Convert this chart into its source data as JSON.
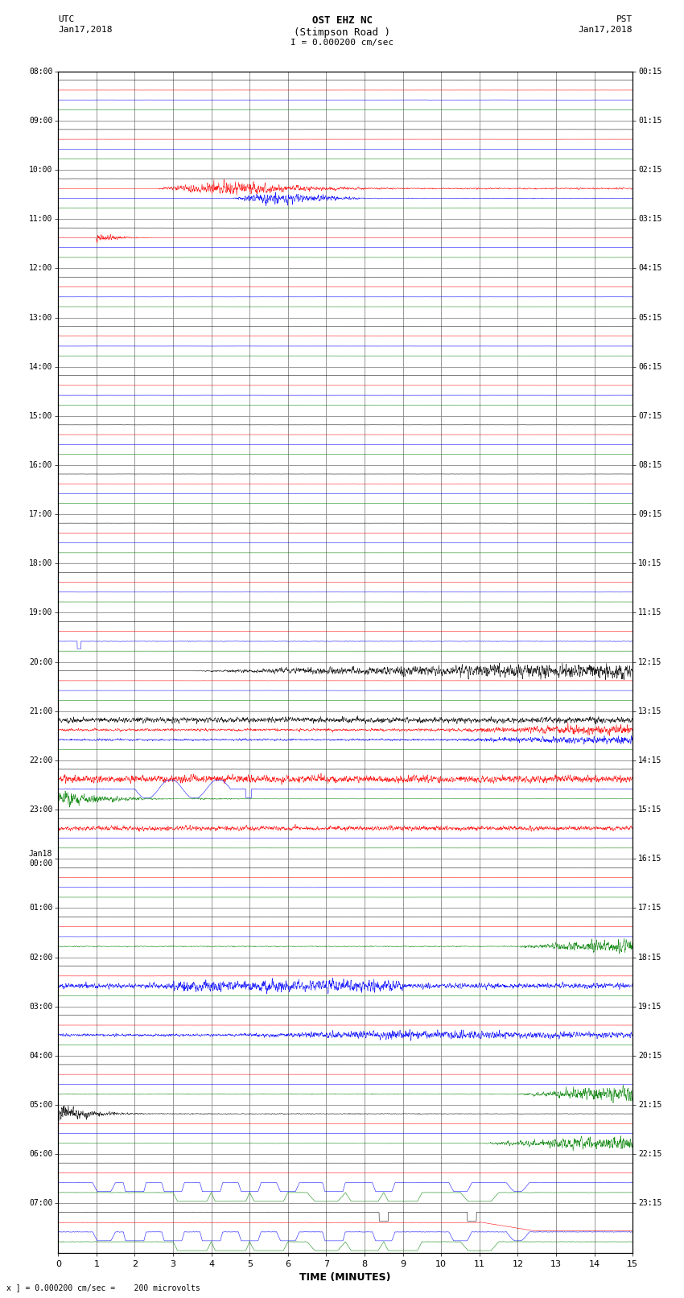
{
  "title_line1": "OST EHZ NC",
  "title_line2": "(Stimpson Road )",
  "title_line3": "I = 0.000200 cm/sec",
  "left_header_line1": "UTC",
  "left_header_line2": "Jan17,2018",
  "right_header_line1": "PST",
  "right_header_line2": "Jan17,2018",
  "xlabel": "TIME (MINUTES)",
  "footer": "x ] = 0.000200 cm/sec =    200 microvolts",
  "bg_color": "#ffffff",
  "grid_color": "#999999",
  "trace_colors": [
    "black",
    "red",
    "blue",
    "green"
  ],
  "left_times_utc": [
    "08:00",
    "09:00",
    "10:00",
    "11:00",
    "12:00",
    "13:00",
    "14:00",
    "15:00",
    "16:00",
    "17:00",
    "18:00",
    "19:00",
    "20:00",
    "21:00",
    "22:00",
    "23:00",
    "Jan18\n00:00",
    "01:00",
    "02:00",
    "03:00",
    "04:00",
    "05:00",
    "06:00",
    "07:00"
  ],
  "right_times_pst": [
    "00:15",
    "01:15",
    "02:15",
    "03:15",
    "04:15",
    "05:15",
    "06:15",
    "07:15",
    "08:15",
    "09:15",
    "10:15",
    "11:15",
    "12:15",
    "13:15",
    "14:15",
    "15:15",
    "16:15",
    "17:15",
    "18:15",
    "19:15",
    "20:15",
    "21:15",
    "22:15",
    "23:15"
  ],
  "num_rows": 24,
  "figsize": [
    8.5,
    16.13
  ],
  "dpi": 100
}
